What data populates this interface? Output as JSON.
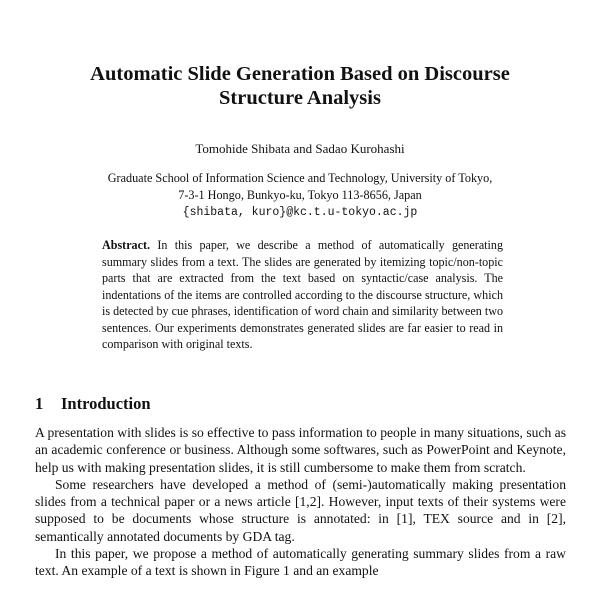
{
  "title": {
    "line1": "Automatic Slide Generation Based on Discourse",
    "line2": "Structure Analysis"
  },
  "authors": "Tomohide Shibata and Sadao Kurohashi",
  "affiliation": {
    "line1": "Graduate School of Information Science and Technology, University of Tokyo,",
    "line2": "7-3-1 Hongo, Bunkyo-ku, Tokyo 113-8656, Japan",
    "email": "{shibata, kuro}@kc.t.u-tokyo.ac.jp"
  },
  "abstract": {
    "label": "Abstract.",
    "text": "In this paper, we describe a method of automatically generating summary slides from a text. The slides are generated by itemizing topic/non-topic parts that are extracted from the text based on syntactic/case analysis. The indentations of the items are controlled according to the discourse structure, which is detected by cue phrases, identification of word chain and similarity between two sentences. Our experiments demonstrates generated slides are far easier to read in comparison with original texts."
  },
  "section": {
    "number": "1",
    "title": "Introduction"
  },
  "paragraphs": [
    "A presentation with slides is so effective to pass information to people in many situations, such as an academic conference or business. Although some softwares, such as PowerPoint and Keynote, help us with making presentation slides, it is still cumbersome to make them from scratch.",
    "Some researchers have developed a method of (semi-)automatically making presentation slides from a technical paper or a news article [1,2]. However, input texts of their systems were supposed to be documents whose structure is annotated: in [1], TEX source and in [2], semantically annotated documents by GDA tag.",
    "In this paper, we propose a method of automatically generating summary slides from a raw text. An example of a text is shown in Figure 1 and an example"
  ]
}
